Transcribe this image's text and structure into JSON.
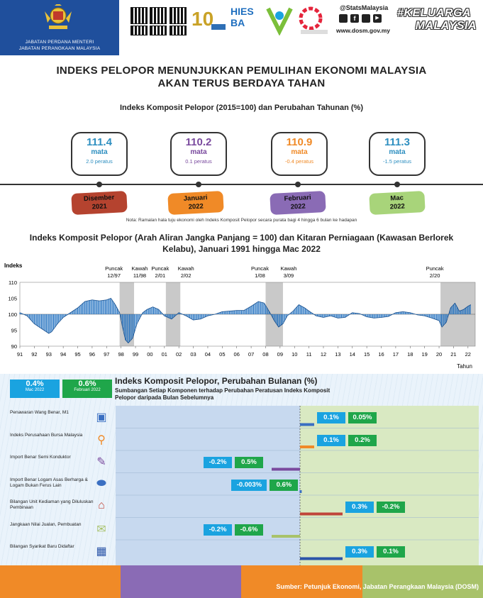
{
  "header": {
    "org_line1": "JABATAN PERDANA MENTERI",
    "org_line2": "JABATAN PERANGKAAN MALAYSIA",
    "social_handle": "@StatsMalaysia",
    "website": "www.dosm.gov.my",
    "campaign_line1": "#KELUARGA",
    "campaign_line2": "MALAYSIA",
    "hies_l1": "HIES",
    "hies_l2": "BA"
  },
  "title": {
    "line1": "INDEKS PELOPOR MENUNJUKKAN PEMULIHAN EKONOMI MALAYSIA",
    "line2": "AKAN TERUS BERDAYA TAHAN"
  },
  "timeline": {
    "title": "Indeks Komposit Pelopor (2015=100)  dan Perubahan Tahunan (%)",
    "items": [
      {
        "value": "111.4",
        "unit": "mata",
        "change": "2.0",
        "change_unit": "peratus",
        "month": "Disember",
        "year": "2021",
        "value_color": "#2e8fc0",
        "label_color": "#b5432f"
      },
      {
        "value": "110.2",
        "unit": "mata",
        "change": "0.1",
        "change_unit": "peratus",
        "month": "Januari",
        "year": "2022",
        "value_color": "#7a4a9e",
        "label_color": "#f08a27"
      },
      {
        "value": "110.9",
        "unit": "mata",
        "change": "-0.4",
        "change_unit": "peratus",
        "month": "Februari",
        "year": "2022",
        "value_color": "#f08a27",
        "label_color": "#8a6bb5"
      },
      {
        "value": "111.3",
        "unit": "mata",
        "change": "-1.5",
        "change_unit": "peratus",
        "month": "Mac",
        "year": "2022",
        "value_color": "#2e8fc0",
        "label_color": "#a8d47a"
      }
    ],
    "note": "Nota: Ramalan hala tuju ekonomi oleh Indeks Komposit Pelopor secara purata bagi 4 hingga 6 bulan ke hadapan"
  },
  "chart_data": [
    {
      "type": "area",
      "title": "Indeks Komposit Pelopor (Arah Aliran Jangka Panjang = 100) dan Kitaran Perniagaan (Kawasan Berlorek Kelabu), Januari 1991 hingga Mac 2022",
      "ylabel": "Indeks",
      "xlabel": "Tahun",
      "ylim": [
        90,
        110
      ],
      "yticks": [
        "110",
        "105",
        "100",
        "95",
        "90"
      ],
      "xlim": [
        1991,
        2022.5
      ],
      "xticks": [
        "91",
        "92",
        "93",
        "94",
        "95",
        "96",
        "97",
        "98",
        "99",
        "00",
        "01",
        "02",
        "03",
        "04",
        "05",
        "06",
        "07",
        "08",
        "09",
        "10",
        "11",
        "12",
        "13",
        "14",
        "15",
        "16",
        "17",
        "18",
        "19",
        "20",
        "21",
        "22"
      ],
      "baseline": 100,
      "series": [
        {
          "x": [
            1991.0,
            1991.5,
            1992.0,
            1992.5,
            1993.0,
            1993.2,
            1993.6,
            1994.0,
            1994.5,
            1995.0,
            1995.5,
            1996.0,
            1996.5,
            1997.0,
            1997.3,
            1997.6,
            1997.9,
            1998.1,
            1998.3,
            1998.5,
            1998.8,
            1999.1,
            1999.5,
            1999.8,
            2000.2,
            2000.6,
            2001.0,
            2001.5,
            2002.0,
            2002.5,
            2003.0,
            2003.5,
            2004.0,
            2004.5,
            2005.0,
            2005.5,
            2006.0,
            2006.5,
            2007.0,
            2007.5,
            2007.9,
            2008.3,
            2008.6,
            2008.9,
            2009.2,
            2009.5,
            2009.9,
            2010.3,
            2010.7,
            2011.0,
            2011.5,
            2012.0,
            2012.5,
            2013.0,
            2013.5,
            2014.0,
            2014.5,
            2015.0,
            2015.5,
            2016.0,
            2016.5,
            2017.0,
            2017.5,
            2018.0,
            2018.5,
            2019.0,
            2019.5,
            2020.0,
            2020.2,
            2020.5,
            2020.8,
            2021.1,
            2021.4,
            2021.7,
            2022.0,
            2022.2
          ],
          "y": [
            100.5,
            99.5,
            97.0,
            95.5,
            94.0,
            94.5,
            97.0,
            99.0,
            100.5,
            102.0,
            104.0,
            104.5,
            104.2,
            104.5,
            105.0,
            103.0,
            100.5,
            96.0,
            92.0,
            91.0,
            92.5,
            97.0,
            100.5,
            101.5,
            102.3,
            101.5,
            99.5,
            98.5,
            100.5,
            99.5,
            98.2,
            98.5,
            99.5,
            100.0,
            100.8,
            101.0,
            101.2,
            101.2,
            102.5,
            104.0,
            103.5,
            100.5,
            98.0,
            96.0,
            97.0,
            99.5,
            101.0,
            103.0,
            102.0,
            101.0,
            99.5,
            99.0,
            99.5,
            98.8,
            99.0,
            100.5,
            100.2,
            99.2,
            98.8,
            99.0,
            99.3,
            100.5,
            100.8,
            100.5,
            99.8,
            99.5,
            98.8,
            98.0,
            96.0,
            97.5,
            102.0,
            103.5,
            101.0,
            101.5,
            102.5,
            103.0
          ]
        }
      ],
      "shaded_periods": [
        [
          1997.9,
          1998.9
        ],
        [
          2001.1,
          2002.1
        ],
        [
          2008.0,
          2009.2
        ],
        [
          2020.1,
          2022.5
        ]
      ],
      "annotations": [
        {
          "label": "Puncak",
          "sub": "12/97",
          "x": 1997.9
        },
        {
          "label": "Kawah",
          "sub": "11/98",
          "x": 1998.9
        },
        {
          "label": "Puncak",
          "sub": "2/01",
          "x": 2001.1
        },
        {
          "label": "Kawah",
          "sub": "2/02",
          "x": 2002.1
        },
        {
          "label": "Puncak",
          "sub": "1/08",
          "x": 2008.0
        },
        {
          "label": "Kawah",
          "sub": "3/09",
          "x": 2009.2
        },
        {
          "label": "Puncak",
          "sub": "2/20",
          "x": 2020.1
        }
      ],
      "colors": {
        "fill": "#1f6fbf",
        "shade": "#c9c9c9"
      }
    },
    {
      "type": "bar",
      "title": "Indeks Komposit Pelopor, Perubahan Bulanan (%)",
      "subtitle": "Sumbangan Setiap Komponen terhadap Perubahan Peratusan Indeks Komposit Pelopor daripada Bulan Sebelumnya",
      "categories": [
        "Penawaran Wang Benar, M1",
        "Indeks Perusahaan Bursa Malaysia",
        "Import Benar Semi Konduktor",
        "Import Benar Logam Asas Berharga & Logam Bukan Ferus Lain",
        "Bilangan Unit Kediaman yang Diluluskan Pembinaan",
        "Jangkaan Nilai Jualan, Pembuatan",
        "Bilangan Syarikat Baru Didaftar"
      ],
      "series": [
        {
          "name": "Mac 2022",
          "values": [
            0.1,
            0.1,
            -0.2,
            -0.003,
            0.3,
            -0.2,
            0.3
          ],
          "labels": [
            "0.1%",
            "0.1%",
            "-0.2%",
            "-0.003%",
            "0.3%",
            "-0.2%",
            "0.3%"
          ],
          "color": "#1aa3e0"
        },
        {
          "name": "Februari 2022",
          "values": [
            0.05,
            0.2,
            0.5,
            0.6,
            -0.2,
            -0.6,
            0.1
          ],
          "labels": [
            "0.05%",
            "0.2%",
            "0.5%",
            "0.6%",
            "-0.2%",
            "-0.6%",
            "0.1%"
          ],
          "color": "#1fa64a"
        }
      ],
      "bar_colors": [
        "#3a6fc2",
        "#f08a27",
        "#7a4a9e",
        "#3a6fc2",
        "#c0453a",
        "#a8c26a",
        "#2b55a8"
      ],
      "summary_badges": [
        {
          "value": "0.4%",
          "label": "Mac 2022",
          "color": "#1aa3e0"
        },
        {
          "value": "0.6%",
          "label": "Februari 2022",
          "color": "#1fa64a"
        }
      ]
    }
  ],
  "footer": {
    "source": "Sumber: Petunjuk Ekonomi, Jabatan Perangkaan Malaysia (DOSM)"
  }
}
